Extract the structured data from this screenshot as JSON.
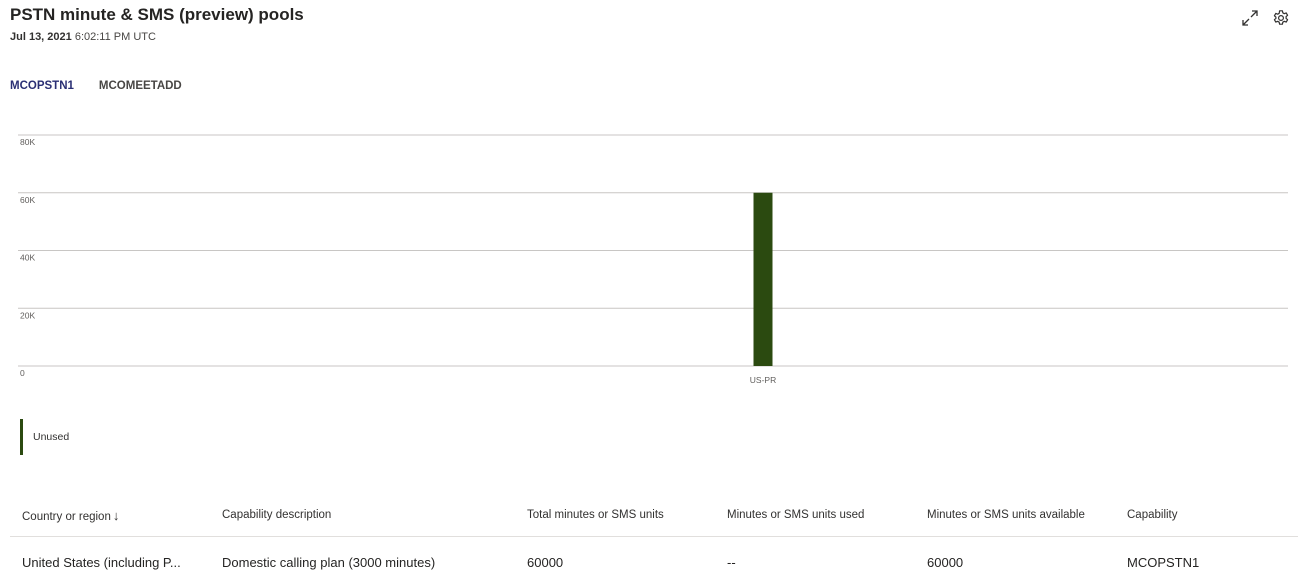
{
  "header": {
    "title": "PSTN minute & SMS (preview) pools",
    "date": "Jul 13, 2021",
    "time": "6:02:11 PM UTC",
    "expand_icon": "expand-icon",
    "settings_icon": "gear-icon"
  },
  "tabs": [
    {
      "label": "MCOPSTN1",
      "active": true
    },
    {
      "label": "MCOMEETADD",
      "active": false
    }
  ],
  "chart_data": {
    "type": "bar",
    "categories": [
      "US-PR"
    ],
    "series": [
      {
        "name": "Unused",
        "values": [
          60000
        ]
      }
    ],
    "yticks": [
      "0",
      "20K",
      "40K",
      "60K",
      "80K"
    ],
    "ylim": [
      0,
      80000
    ],
    "grid": true,
    "legend": "bottom-left",
    "color": "#2b4a10"
  },
  "legend": {
    "label": "Unused"
  },
  "table": {
    "columns": [
      {
        "label": "Country or region",
        "sort": "↓"
      },
      {
        "label": "Capability description"
      },
      {
        "label": "Total minutes or SMS units"
      },
      {
        "label": "Minutes or SMS units used"
      },
      {
        "label": "Minutes or SMS units available"
      },
      {
        "label": "Capability"
      }
    ],
    "rows": [
      [
        "United States (including P...",
        "Domestic calling plan (3000 minutes)",
        "60000",
        "--",
        "60000",
        "MCOPSTN1"
      ]
    ]
  }
}
